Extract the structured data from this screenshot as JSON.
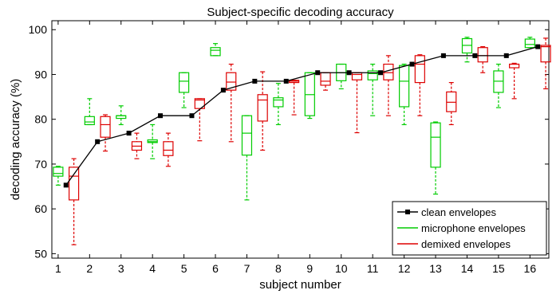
{
  "chart_data": {
    "type": "box",
    "title": "Subject-specific decoding accuracy",
    "xlabel": "subject number",
    "ylabel": "decoding accuracy (%)",
    "ylim": [
      49,
      102
    ],
    "xlim": [
      0.8,
      16.6
    ],
    "yticks": [
      50,
      60,
      70,
      80,
      90,
      100
    ],
    "xticks": [
      1,
      2,
      3,
      4,
      5,
      6,
      7,
      8,
      9,
      10,
      11,
      12,
      13,
      14,
      15,
      16
    ],
    "grid": false,
    "legend_position": "bottom-right",
    "series": [
      {
        "name": "clean envelopes",
        "kind": "line",
        "color": "#000000",
        "x": [
          1.25,
          2.25,
          3.25,
          4.25,
          5.25,
          6.25,
          7.25,
          8.25,
          9.25,
          10.25,
          11.25,
          12.25,
          13.25,
          14.25,
          15.25,
          16.25
        ],
        "y": [
          65.3,
          75.0,
          76.9,
          80.8,
          80.8,
          86.5,
          88.5,
          88.5,
          90.4,
          90.4,
          90.4,
          92.3,
          94.2,
          94.2,
          94.2,
          96.2
        ]
      },
      {
        "name": "microphone envelopes",
        "kind": "box",
        "color": "#00cc00",
        "boxes": [
          {
            "x": 1,
            "min": 65.3,
            "q1": 67.3,
            "median": 67.9,
            "q3": 69.3,
            "max": 69.5
          },
          {
            "x": 2,
            "min": 78.8,
            "q1": 78.8,
            "median": 79.4,
            "q3": 80.6,
            "max": 84.6
          },
          {
            "x": 3,
            "min": 78.8,
            "q1": 80.2,
            "median": 80.8,
            "q3": 80.8,
            "max": 83.0
          },
          {
            "x": 4,
            "min": 71.2,
            "q1": 74.8,
            "median": 75.0,
            "q3": 75.4,
            "max": 78.8
          },
          {
            "x": 5,
            "min": 82.6,
            "q1": 86.0,
            "median": 88.5,
            "q3": 90.4,
            "max": 90.4
          },
          {
            "x": 6,
            "min": 94.2,
            "q1": 94.2,
            "median": 95.4,
            "q3": 96.0,
            "max": 96.9
          },
          {
            "x": 7,
            "min": 62.0,
            "q1": 72.0,
            "median": 76.9,
            "q3": 80.8,
            "max": 80.8
          },
          {
            "x": 8,
            "min": 78.8,
            "q1": 82.8,
            "median": 84.3,
            "q3": 84.8,
            "max": 88.0
          },
          {
            "x": 9,
            "min": 80.2,
            "q1": 80.8,
            "median": 85.5,
            "q3": 90.4,
            "max": 90.4
          },
          {
            "x": 10,
            "min": 86.8,
            "q1": 88.6,
            "median": 90.4,
            "q3": 92.3,
            "max": 92.3
          },
          {
            "x": 11,
            "min": 80.8,
            "q1": 88.8,
            "median": 90.2,
            "q3": 90.8,
            "max": 92.3
          },
          {
            "x": 12,
            "min": 78.8,
            "q1": 82.8,
            "median": 88.5,
            "q3": 92.0,
            "max": 92.3
          },
          {
            "x": 13,
            "min": 63.3,
            "q1": 69.3,
            "median": 76.0,
            "q3": 79.2,
            "max": 79.4
          },
          {
            "x": 14,
            "min": 92.8,
            "q1": 94.8,
            "median": 96.5,
            "q3": 98.0,
            "max": 98.3
          },
          {
            "x": 15,
            "min": 82.6,
            "q1": 86.0,
            "median": 88.5,
            "q3": 90.8,
            "max": 92.3
          },
          {
            "x": 16,
            "min": 96.0,
            "q1": 96.0,
            "median": 96.7,
            "q3": 97.9,
            "max": 98.3
          }
        ]
      },
      {
        "name": "demixed envelopes",
        "kind": "box",
        "color": "#dd0000",
        "boxes": [
          {
            "x": 1.5,
            "min": 52.0,
            "q1": 62.0,
            "median": 67.3,
            "q3": 69.3,
            "max": 71.2
          },
          {
            "x": 2.5,
            "min": 72.9,
            "q1": 76.0,
            "median": 78.8,
            "q3": 80.6,
            "max": 81.0
          },
          {
            "x": 3.5,
            "min": 71.2,
            "q1": 73.1,
            "median": 74.0,
            "q3": 75.0,
            "max": 76.9
          },
          {
            "x": 4.5,
            "min": 69.5,
            "q1": 71.9,
            "median": 73.1,
            "q3": 75.0,
            "max": 76.9
          },
          {
            "x": 5.5,
            "min": 75.2,
            "q1": 82.4,
            "median": 84.3,
            "q3": 84.6,
            "max": 84.6
          },
          {
            "x": 6.5,
            "min": 75.0,
            "q1": 86.5,
            "median": 88.3,
            "q3": 90.4,
            "max": 92.3
          },
          {
            "x": 7.5,
            "min": 73.1,
            "q1": 79.6,
            "median": 84.3,
            "q3": 85.5,
            "max": 90.6
          },
          {
            "x": 8.5,
            "min": 81.0,
            "q1": 88.2,
            "median": 88.5,
            "q3": 88.7,
            "max": 88.7
          },
          {
            "x": 9.5,
            "min": 86.5,
            "q1": 87.6,
            "median": 88.5,
            "q3": 90.4,
            "max": 90.4
          },
          {
            "x": 10.5,
            "min": 77.0,
            "q1": 88.8,
            "median": 90.0,
            "q3": 90.4,
            "max": 90.4
          },
          {
            "x": 11.5,
            "min": 80.8,
            "q1": 88.8,
            "median": 90.4,
            "q3": 92.3,
            "max": 94.2
          },
          {
            "x": 12.5,
            "min": 80.8,
            "q1": 88.2,
            "median": 92.3,
            "q3": 94.2,
            "max": 94.4
          },
          {
            "x": 13.5,
            "min": 78.8,
            "q1": 81.7,
            "median": 83.8,
            "q3": 86.1,
            "max": 88.2
          },
          {
            "x": 14.5,
            "min": 90.4,
            "q1": 92.8,
            "median": 94.2,
            "q3": 96.0,
            "max": 96.2
          },
          {
            "x": 15.5,
            "min": 84.6,
            "q1": 91.5,
            "median": 92.3,
            "q3": 92.3,
            "max": 92.5
          },
          {
            "x": 16.5,
            "min": 86.8,
            "q1": 92.8,
            "median": 96.2,
            "q3": 96.5,
            "max": 98.1
          }
        ]
      }
    ]
  }
}
